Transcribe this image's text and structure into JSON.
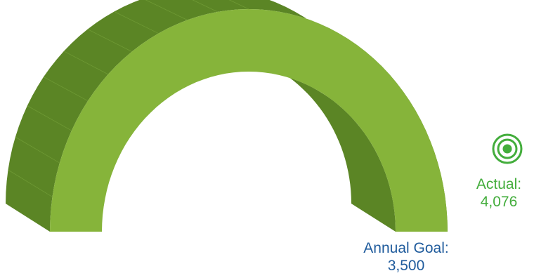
{
  "chart_data": {
    "type": "gauge",
    "goal": {
      "label": "Annual Goal:",
      "value": 3500,
      "display": "3,500"
    },
    "actual": {
      "label": "Actual:",
      "value": 4076,
      "display": "4,076"
    },
    "colors": {
      "front": "#86b43a",
      "side": "#5b8525",
      "actual": "#43ad3c",
      "goal": "#1f5b9c"
    }
  },
  "icons": {
    "actual_marker": "target-icon"
  }
}
